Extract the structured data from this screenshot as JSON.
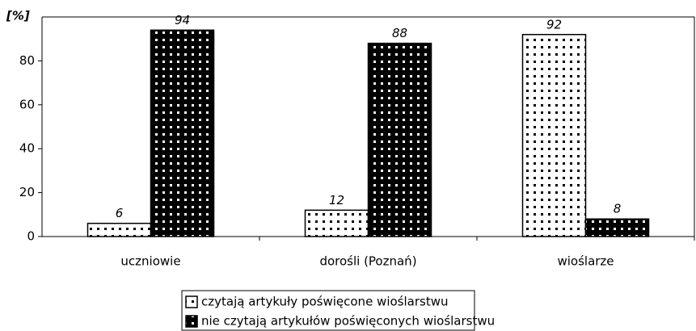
{
  "chart_data": {
    "type": "bar",
    "y_label": "[%]",
    "categories": [
      "uczniowie",
      "dorośli (Poznań)",
      "wioślarze"
    ],
    "series": [
      {
        "name": "czytają artykuły poświęcone wioślarstwu",
        "color": "#ffffff",
        "values": [
          6,
          12,
          92
        ]
      },
      {
        "name": "nie czytają artykułów poświęconych wioślarstwu",
        "color": "#000000",
        "values": [
          94,
          88,
          8
        ]
      }
    ],
    "ylim": [
      0,
      100
    ],
    "yticks": [
      0,
      20,
      40,
      60,
      80
    ],
    "legend": "bottom"
  }
}
